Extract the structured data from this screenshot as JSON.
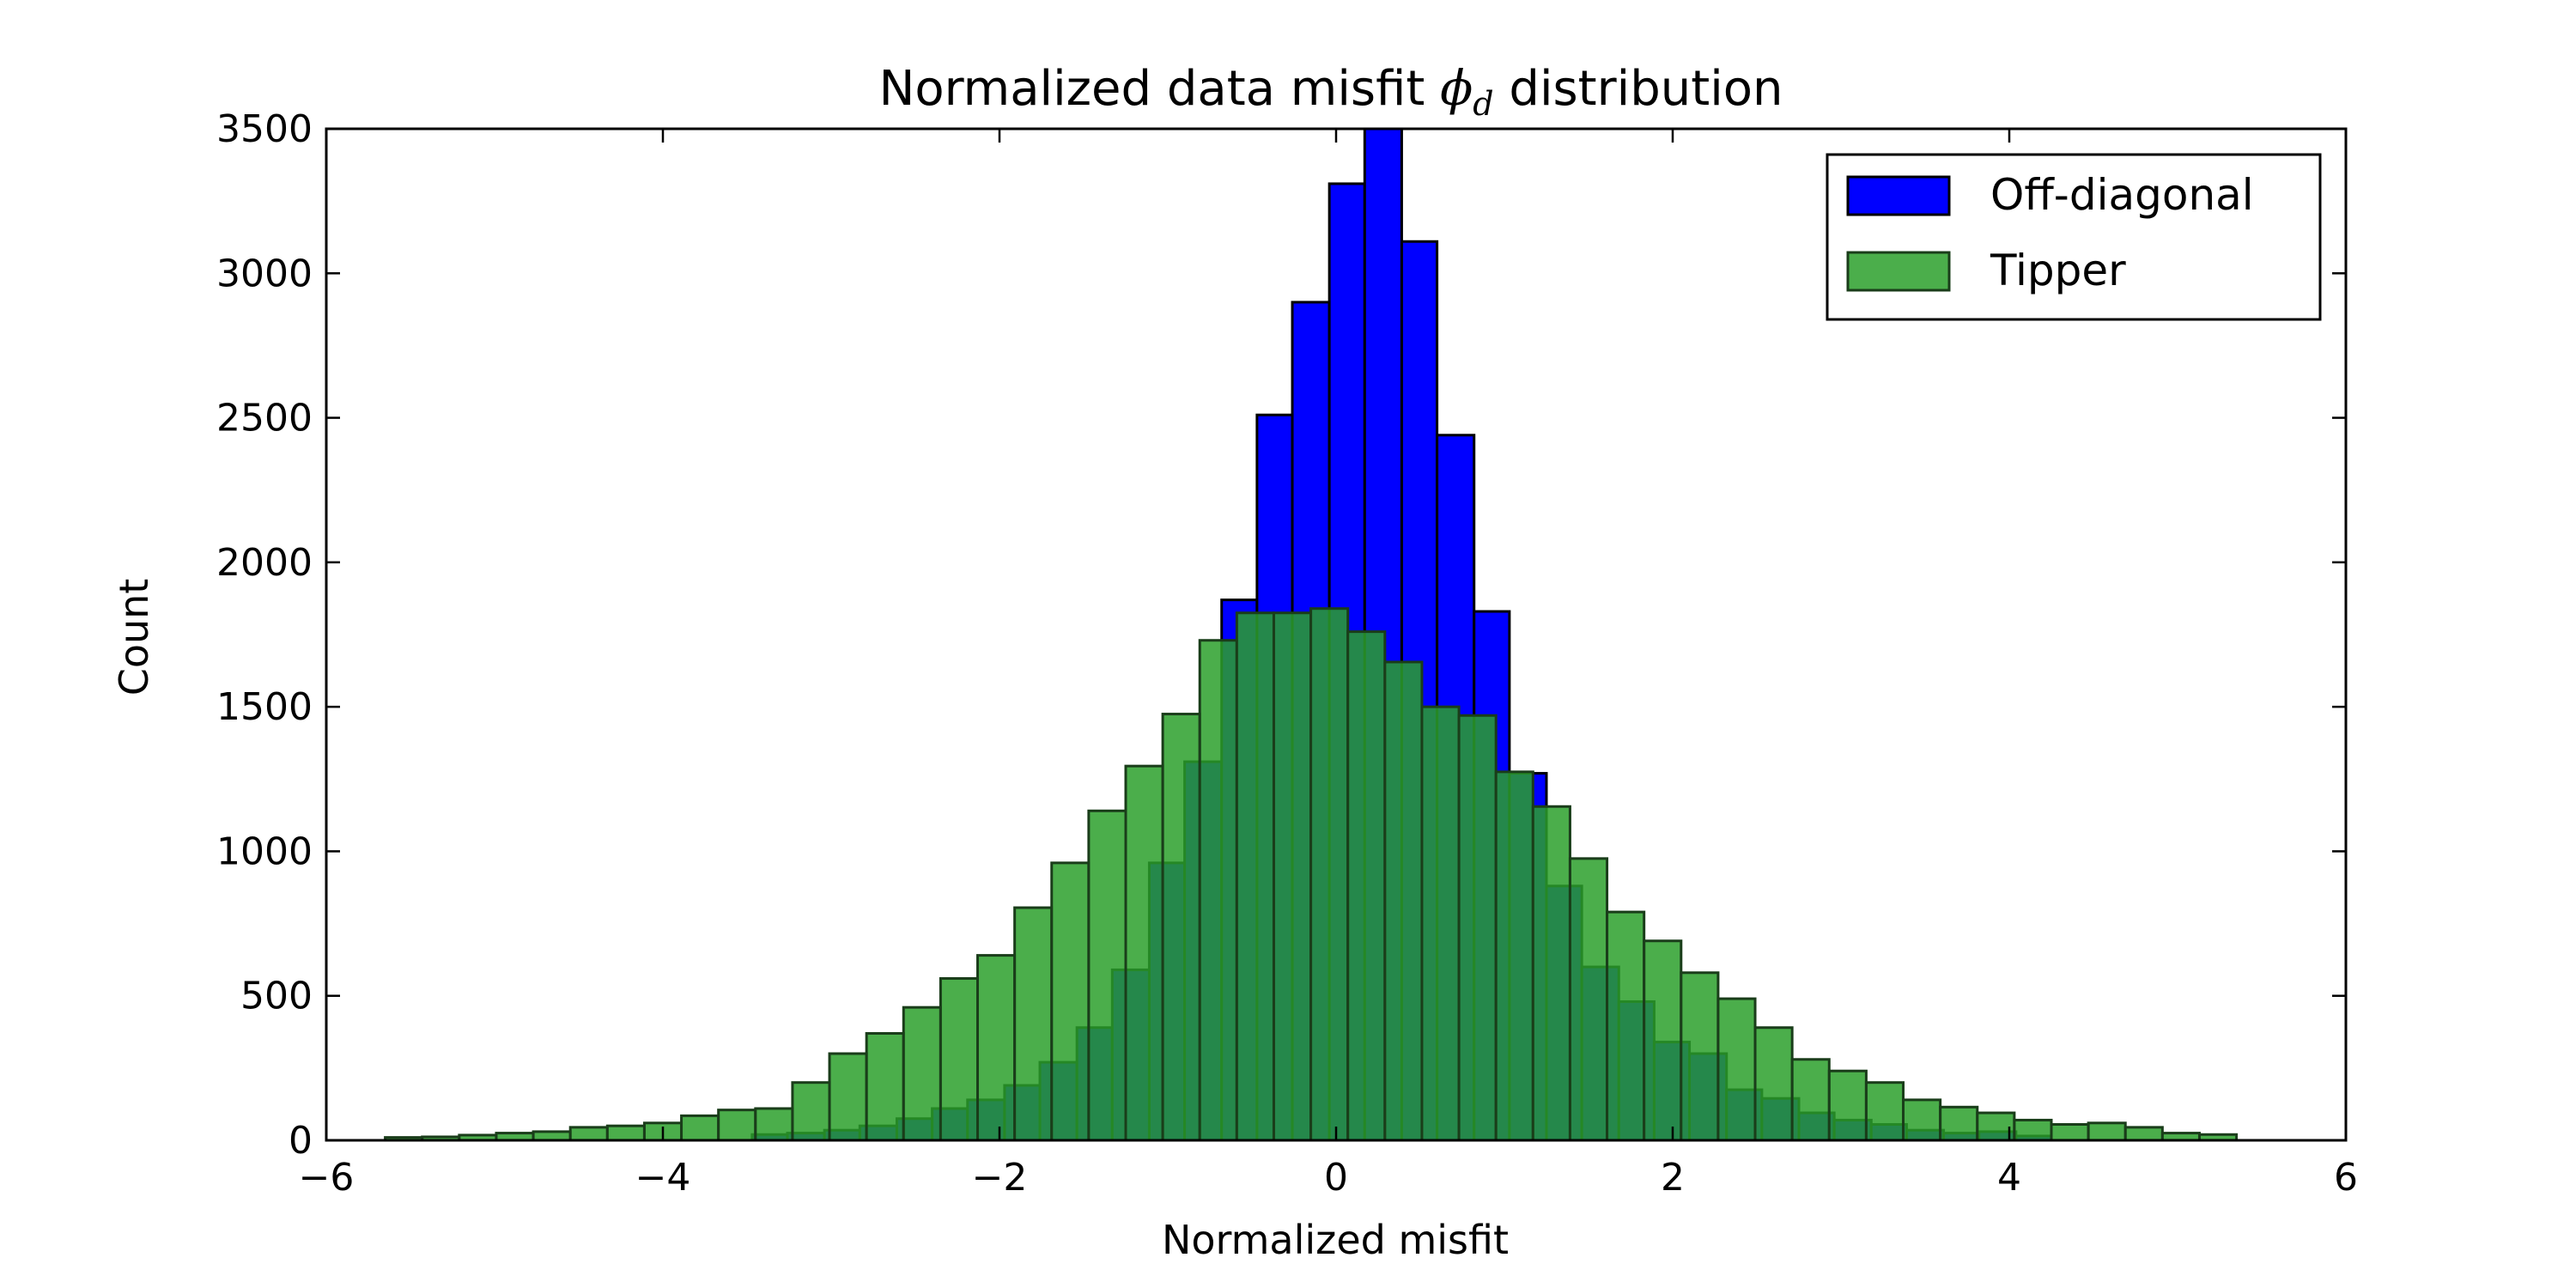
{
  "chart_data": {
    "type": "bar",
    "title": {
      "prefix": "Normalized data misfit ",
      "symbol": "ϕ",
      "subscript": "d",
      "suffix": " distribution"
    },
    "xlabel": "Normalized misfit",
    "ylabel": "Count",
    "xlim": [
      -6,
      6
    ],
    "ylim": [
      0,
      3500
    ],
    "xticks": [
      -6,
      -4,
      -2,
      0,
      2,
      4,
      6
    ],
    "xtick_labels": [
      "−6",
      "−4",
      "−2",
      "0",
      "2",
      "4",
      "6"
    ],
    "yticks": [
      0,
      500,
      1000,
      1500,
      2000,
      2500,
      3000,
      3500
    ],
    "ytick_labels": [
      "0",
      "500",
      "1000",
      "1500",
      "2000",
      "2500",
      "3000",
      "3500"
    ],
    "grid": false,
    "legend_position": "top-right",
    "series": [
      {
        "name": "Off-diagonal",
        "color": "#0000ff",
        "bins": [
          [
            -3.47,
            -3.26,
            20
          ],
          [
            -3.26,
            -3.04,
            25
          ],
          [
            -3.04,
            -2.83,
            35
          ],
          [
            -2.83,
            -2.61,
            50
          ],
          [
            -2.61,
            -2.4,
            75
          ],
          [
            -2.4,
            -2.19,
            110
          ],
          [
            -2.19,
            -1.97,
            140
          ],
          [
            -1.97,
            -1.76,
            190
          ],
          [
            -1.76,
            -1.54,
            270
          ],
          [
            -1.54,
            -1.33,
            390
          ],
          [
            -1.33,
            -1.11,
            590
          ],
          [
            -1.11,
            -0.9,
            960
          ],
          [
            -0.9,
            -0.68,
            1310
          ],
          [
            -0.68,
            -0.47,
            1870
          ],
          [
            -0.47,
            -0.26,
            2510
          ],
          [
            -0.26,
            -0.04,
            2900
          ],
          [
            -0.04,
            0.17,
            3310
          ],
          [
            0.17,
            0.39,
            3500
          ],
          [
            0.39,
            0.6,
            3110
          ],
          [
            0.6,
            0.82,
            2440
          ],
          [
            0.82,
            1.03,
            1830
          ],
          [
            1.03,
            1.25,
            1270
          ],
          [
            1.25,
            1.46,
            880
          ],
          [
            1.46,
            1.68,
            600
          ],
          [
            1.68,
            1.89,
            480
          ],
          [
            1.89,
            2.1,
            340
          ],
          [
            2.1,
            2.32,
            300
          ],
          [
            2.32,
            2.53,
            175
          ],
          [
            2.53,
            2.75,
            145
          ],
          [
            2.75,
            2.96,
            95
          ],
          [
            2.96,
            3.18,
            70
          ],
          [
            3.18,
            3.39,
            55
          ],
          [
            3.39,
            3.61,
            35
          ],
          [
            3.61,
            3.82,
            25
          ],
          [
            3.82,
            4.04,
            30
          ],
          [
            4.04,
            4.25,
            15
          ]
        ]
      },
      {
        "name": "Tipper",
        "color": "#2ca02c",
        "bins": [
          [
            -5.65,
            -5.43,
            10
          ],
          [
            -5.43,
            -5.21,
            12
          ],
          [
            -5.21,
            -4.99,
            18
          ],
          [
            -4.99,
            -4.77,
            25
          ],
          [
            -4.77,
            -4.55,
            30
          ],
          [
            -4.55,
            -4.33,
            45
          ],
          [
            -4.33,
            -4.11,
            50
          ],
          [
            -4.11,
            -3.89,
            60
          ],
          [
            -3.89,
            -3.67,
            85
          ],
          [
            -3.67,
            -3.45,
            105
          ],
          [
            -3.45,
            -3.23,
            110
          ],
          [
            -3.23,
            -3.01,
            200
          ],
          [
            -3.01,
            -2.79,
            300
          ],
          [
            -2.79,
            -2.57,
            370
          ],
          [
            -2.57,
            -2.35,
            460
          ],
          [
            -2.35,
            -2.13,
            560
          ],
          [
            -2.13,
            -1.91,
            640
          ],
          [
            -1.91,
            -1.69,
            805
          ],
          [
            -1.69,
            -1.47,
            960
          ],
          [
            -1.47,
            -1.25,
            1140
          ],
          [
            -1.25,
            -1.03,
            1295
          ],
          [
            -1.03,
            -0.81,
            1475
          ],
          [
            -0.81,
            -0.59,
            1730
          ],
          [
            -0.59,
            -0.37,
            1825
          ],
          [
            -0.37,
            -0.15,
            1825
          ],
          [
            -0.15,
            0.07,
            1840
          ],
          [
            0.07,
            0.29,
            1760
          ],
          [
            0.29,
            0.51,
            1655
          ],
          [
            0.51,
            0.73,
            1500
          ],
          [
            0.73,
            0.95,
            1470
          ],
          [
            0.95,
            1.17,
            1275
          ],
          [
            1.17,
            1.39,
            1155
          ],
          [
            1.39,
            1.61,
            975
          ],
          [
            1.61,
            1.83,
            790
          ],
          [
            1.83,
            2.05,
            690
          ],
          [
            2.05,
            2.27,
            580
          ],
          [
            2.27,
            2.49,
            490
          ],
          [
            2.49,
            2.71,
            390
          ],
          [
            2.71,
            2.93,
            280
          ],
          [
            2.93,
            3.15,
            240
          ],
          [
            3.15,
            3.37,
            200
          ],
          [
            3.37,
            3.59,
            140
          ],
          [
            3.59,
            3.81,
            115
          ],
          [
            3.81,
            4.03,
            95
          ],
          [
            4.03,
            4.25,
            70
          ],
          [
            4.25,
            4.47,
            55
          ],
          [
            4.47,
            4.69,
            60
          ],
          [
            4.69,
            4.91,
            45
          ],
          [
            4.91,
            5.13,
            25
          ],
          [
            5.13,
            5.35,
            20
          ]
        ]
      }
    ]
  }
}
